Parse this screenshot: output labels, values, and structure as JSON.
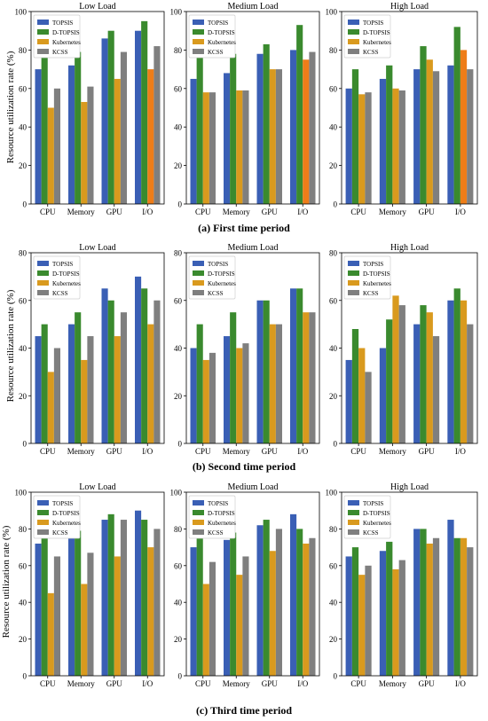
{
  "colors": {
    "TOPSIS": "#3a5fb5",
    "D-TOPSIS": "#3a8a2e",
    "Kubernetes": "#d99a1e",
    "KCSS": "#7f7f7f",
    "Kubernetes_IO_first_period": "#ee7d19",
    "axis": "#000000"
  },
  "legend_labels": [
    "TOPSIS",
    "D-TOPSIS",
    "Kubernetes",
    "KCSS"
  ],
  "ylabel": "Resource utilization rate (%)",
  "panel_titles": {
    "first": "(a) First time period",
    "second": "(b) Second time period",
    "third": "(c) Third time period"
  },
  "chart_data": [
    {
      "type": "bar",
      "period": "first",
      "title": "Low Load",
      "categories": [
        "CPU",
        "Memory",
        "GPU",
        "I/O"
      ],
      "ylim": [
        0,
        100
      ],
      "yticks": [
        0,
        20,
        40,
        60,
        80,
        100
      ],
      "legend": "top-left",
      "grid": false,
      "series": [
        {
          "name": "TOPSIS",
          "values": [
            70,
            72,
            86,
            90
          ]
        },
        {
          "name": "D-TOPSIS",
          "values": [
            78,
            79,
            90,
            95
          ]
        },
        {
          "name": "Kubernetes",
          "values": [
            50,
            53,
            65,
            70
          ]
        },
        {
          "name": "KCSS",
          "values": [
            60,
            61,
            79,
            82
          ]
        }
      ]
    },
    {
      "type": "bar",
      "period": "first",
      "title": "Medium Load",
      "categories": [
        "CPU",
        "Memory",
        "GPU",
        "I/O"
      ],
      "ylim": [
        0,
        100
      ],
      "yticks": [
        0,
        20,
        40,
        60,
        80,
        100
      ],
      "legend": "top-left",
      "grid": false,
      "series": [
        {
          "name": "TOPSIS",
          "values": [
            65,
            68,
            78,
            80
          ]
        },
        {
          "name": "D-TOPSIS",
          "values": [
            76,
            78,
            83,
            93
          ]
        },
        {
          "name": "Kubernetes",
          "values": [
            58,
            59,
            70,
            75
          ]
        },
        {
          "name": "KCSS",
          "values": [
            58,
            59,
            70,
            79
          ]
        }
      ]
    },
    {
      "type": "bar",
      "period": "first",
      "title": "High Load",
      "categories": [
        "CPU",
        "Memory",
        "GPU",
        "I/O"
      ],
      "ylim": [
        0,
        100
      ],
      "yticks": [
        0,
        20,
        40,
        60,
        80,
        100
      ],
      "legend": "top-left",
      "grid": false,
      "series": [
        {
          "name": "TOPSIS",
          "values": [
            60,
            65,
            70,
            72
          ]
        },
        {
          "name": "D-TOPSIS",
          "values": [
            70,
            72,
            82,
            92
          ]
        },
        {
          "name": "Kubernetes",
          "values": [
            57,
            60,
            75,
            80
          ]
        },
        {
          "name": "KCSS",
          "values": [
            58,
            59,
            69,
            70
          ]
        }
      ]
    },
    {
      "type": "bar",
      "period": "second",
      "title": "Low Load",
      "categories": [
        "CPU",
        "Memory",
        "GPU",
        "I/O"
      ],
      "ylim": [
        0,
        80
      ],
      "yticks": [
        0,
        20,
        40,
        60,
        80
      ],
      "legend": "top-left",
      "grid": false,
      "series": [
        {
          "name": "TOPSIS",
          "values": [
            45,
            50,
            65,
            70
          ]
        },
        {
          "name": "D-TOPSIS",
          "values": [
            50,
            55,
            60,
            65
          ]
        },
        {
          "name": "Kubernetes",
          "values": [
            30,
            35,
            45,
            50
          ]
        },
        {
          "name": "KCSS",
          "values": [
            40,
            45,
            55,
            60
          ]
        }
      ]
    },
    {
      "type": "bar",
      "period": "second",
      "title": "Medium Load",
      "categories": [
        "CPU",
        "Memory",
        "GPU",
        "I/O"
      ],
      "ylim": [
        0,
        80
      ],
      "yticks": [
        0,
        20,
        40,
        60,
        80
      ],
      "legend": "top-left",
      "grid": false,
      "series": [
        {
          "name": "TOPSIS",
          "values": [
            40,
            45,
            60,
            65
          ]
        },
        {
          "name": "D-TOPSIS",
          "values": [
            50,
            55,
            60,
            65
          ]
        },
        {
          "name": "Kubernetes",
          "values": [
            35,
            40,
            50,
            55
          ]
        },
        {
          "name": "KCSS",
          "values": [
            38,
            42,
            50,
            55
          ]
        }
      ]
    },
    {
      "type": "bar",
      "period": "second",
      "title": "High Load",
      "categories": [
        "CPU",
        "Memory",
        "GPU",
        "I/O"
      ],
      "ylim": [
        0,
        80
      ],
      "yticks": [
        0,
        20,
        40,
        60,
        80
      ],
      "legend": "top-left",
      "grid": false,
      "series": [
        {
          "name": "TOPSIS",
          "values": [
            35,
            40,
            50,
            60
          ]
        },
        {
          "name": "D-TOPSIS",
          "values": [
            48,
            52,
            58,
            65
          ]
        },
        {
          "name": "Kubernetes",
          "values": [
            40,
            62,
            55,
            60
          ]
        },
        {
          "name": "KCSS",
          "values": [
            30,
            58,
            45,
            50
          ]
        }
      ]
    },
    {
      "type": "bar",
      "period": "third",
      "title": "Low Load",
      "categories": [
        "CPU",
        "Memory",
        "GPU",
        "I/O"
      ],
      "ylim": [
        0,
        100
      ],
      "yticks": [
        0,
        20,
        40,
        60,
        80,
        100
      ],
      "legend": "top-left",
      "grid": false,
      "series": [
        {
          "name": "TOPSIS",
          "values": [
            72,
            75,
            85,
            90
          ]
        },
        {
          "name": "D-TOPSIS",
          "values": [
            78,
            79,
            88,
            85
          ]
        },
        {
          "name": "Kubernetes",
          "values": [
            45,
            50,
            65,
            70
          ]
        },
        {
          "name": "KCSS",
          "values": [
            65,
            67,
            85,
            80
          ]
        }
      ]
    },
    {
      "type": "bar",
      "period": "third",
      "title": "Medium Load",
      "categories": [
        "CPU",
        "Memory",
        "GPU",
        "I/O"
      ],
      "ylim": [
        0,
        100
      ],
      "yticks": [
        0,
        20,
        40,
        60,
        80,
        100
      ],
      "legend": "top-left",
      "grid": false,
      "series": [
        {
          "name": "TOPSIS",
          "values": [
            70,
            74,
            82,
            88
          ]
        },
        {
          "name": "D-TOPSIS",
          "values": [
            75,
            78,
            85,
            80
          ]
        },
        {
          "name": "Kubernetes",
          "values": [
            50,
            55,
            68,
            72
          ]
        },
        {
          "name": "KCSS",
          "values": [
            62,
            65,
            80,
            75
          ]
        }
      ]
    },
    {
      "type": "bar",
      "period": "third",
      "title": "High Load",
      "categories": [
        "CPU",
        "Memory",
        "GPU",
        "I/O"
      ],
      "ylim": [
        0,
        100
      ],
      "yticks": [
        0,
        20,
        40,
        60,
        80,
        100
      ],
      "legend": "top-left",
      "grid": false,
      "series": [
        {
          "name": "TOPSIS",
          "values": [
            65,
            68,
            80,
            85
          ]
        },
        {
          "name": "D-TOPSIS",
          "values": [
            70,
            73,
            80,
            75
          ]
        },
        {
          "name": "Kubernetes",
          "values": [
            55,
            58,
            72,
            75
          ]
        },
        {
          "name": "KCSS",
          "values": [
            60,
            63,
            75,
            70
          ]
        }
      ]
    }
  ]
}
